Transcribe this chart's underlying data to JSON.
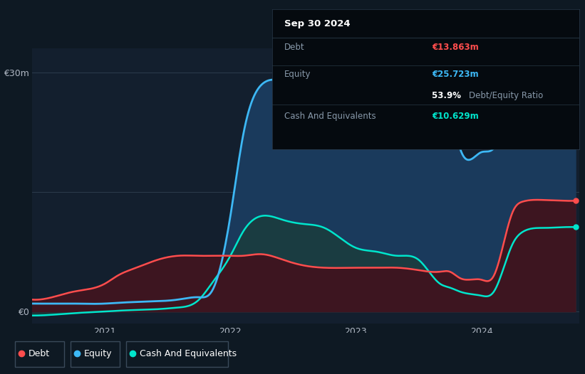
{
  "background_color": "#0e1923",
  "plot_bg_color": "#131f2e",
  "tooltip": {
    "date": "Sep 30 2024",
    "debt": "€13.863m",
    "equity": "€25.723m",
    "ratio": "53.9%",
    "cash": "€10.629m"
  },
  "ylabel_top": "€30m",
  "ylabel_bottom": "€0",
  "x_ticks": [
    "2021",
    "2022",
    "2023",
    "2024"
  ],
  "debt_color": "#ff4d4d",
  "equity_color": "#3db8f5",
  "cash_color": "#00e5cc",
  "equity_fill": "#1a3a5c",
  "debt_fill": "#3d1520",
  "cash_fill": "#1a3d3d",
  "time": [
    2020.42,
    2020.58,
    2020.75,
    2021.0,
    2021.1,
    2021.25,
    2021.42,
    2021.58,
    2021.75,
    2021.85,
    2022.0,
    2022.1,
    2022.25,
    2022.42,
    2022.58,
    2022.75,
    2023.0,
    2023.17,
    2023.33,
    2023.5,
    2023.67,
    2023.75,
    2023.83,
    2024.0,
    2024.1,
    2024.25,
    2024.33,
    2024.5,
    2024.67,
    2024.75
  ],
  "equity": [
    1.0,
    1.0,
    1.0,
    1.0,
    1.1,
    1.2,
    1.3,
    1.5,
    1.8,
    2.5,
    12.0,
    22.0,
    28.5,
    29.0,
    29.0,
    29.0,
    27.5,
    26.5,
    25.8,
    25.5,
    25.0,
    25.0,
    20.5,
    20.0,
    20.5,
    25.5,
    25.7,
    25.7,
    25.7,
    25.7
  ],
  "debt": [
    1.5,
    1.8,
    2.5,
    3.5,
    4.5,
    5.5,
    6.5,
    7.0,
    7.0,
    7.0,
    7.0,
    7.0,
    7.2,
    6.5,
    5.8,
    5.5,
    5.5,
    5.5,
    5.5,
    5.2,
    5.0,
    5.0,
    4.2,
    4.0,
    4.5,
    12.5,
    13.8,
    14.0,
    13.9,
    13.9
  ],
  "cash": [
    -0.5,
    -0.4,
    -0.2,
    0.0,
    0.1,
    0.2,
    0.3,
    0.5,
    1.5,
    3.5,
    7.0,
    10.0,
    12.0,
    11.5,
    11.0,
    10.5,
    8.0,
    7.5,
    7.0,
    6.5,
    3.5,
    3.0,
    2.5,
    2.0,
    2.5,
    8.5,
    10.0,
    10.5,
    10.6,
    10.6
  ],
  "figsize": [
    8.21,
    5.26
  ],
  "dpi": 100
}
